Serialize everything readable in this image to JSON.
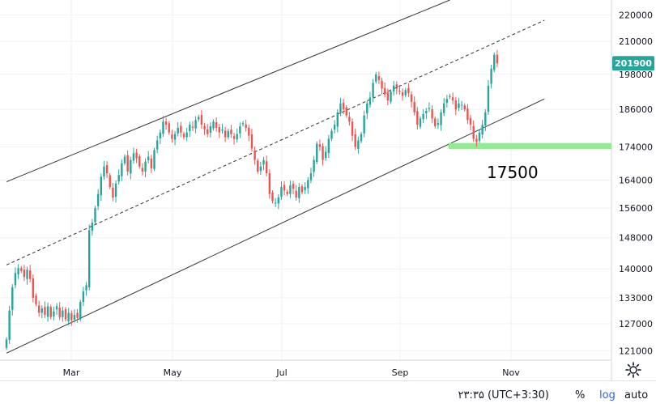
{
  "chart_data": {
    "type": "candlestick",
    "x_ticks": [
      "Mar",
      "May",
      "Jul",
      "Sep",
      "Nov"
    ],
    "y_ticks": [
      121000,
      127000,
      133000,
      140000,
      148000,
      156000,
      164000,
      174000,
      186000,
      198000,
      210000,
      220000
    ],
    "ylim": [
      119000,
      226000
    ],
    "last_price": 201900,
    "last_price_label": "201900",
    "annotation": "17500",
    "support_zone": [
      173300,
      175200
    ],
    "colors": {
      "up": "#26a69a",
      "down": "#ef5350",
      "price_tag": "#26a69a",
      "support": "#90ee90",
      "lines": "#333333"
    },
    "grid": true,
    "y_axis_position": "right",
    "closes": [
      123500,
      130000,
      135500,
      139000,
      140200,
      139500,
      138000,
      139800,
      137500,
      133000,
      131500,
      129500,
      130500,
      129000,
      131000,
      128500,
      129800,
      131000,
      128500,
      130000,
      128000,
      129500,
      127800,
      129000,
      128300,
      132000,
      134500,
      136000,
      150000,
      152000,
      156000,
      160000,
      165000,
      168000,
      166000,
      162000,
      159000,
      163000,
      165500,
      169000,
      171000,
      166500,
      170000,
      172000,
      170500,
      168000,
      166500,
      169500,
      171000,
      167500,
      173000,
      176000,
      178500,
      182000,
      181000,
      178500,
      176500,
      178000,
      180000,
      178500,
      177000,
      178500,
      181000,
      180000,
      182500,
      183500,
      181000,
      179500,
      178000,
      180500,
      182000,
      180000,
      178500,
      179500,
      177000,
      179000,
      178000,
      176500,
      178000,
      180500,
      181500,
      180000,
      177500,
      173500,
      170000,
      166500,
      168000,
      170000,
      166000,
      160000,
      158000,
      157500,
      159000,
      162000,
      161000,
      160000,
      162500,
      161500,
      159000,
      162000,
      160500,
      162000,
      164000,
      166000,
      170000,
      175000,
      174000,
      170000,
      172500,
      176500,
      179000,
      181000,
      185000,
      188000,
      186000,
      184000,
      182000,
      177500,
      174000,
      176000,
      178000,
      184000,
      188000,
      190000,
      195000,
      198000,
      196000,
      193000,
      191000,
      189000,
      192000,
      194000,
      193000,
      192000,
      190500,
      192500,
      191500,
      188500,
      185000,
      181000,
      183000,
      184500,
      185500,
      186500,
      183000,
      180500,
      181500,
      185000,
      188000,
      189500,
      190500,
      189000,
      186000,
      188000,
      187500,
      186000,
      182500,
      181000,
      176500,
      175500,
      178500,
      181000,
      185000,
      194000,
      200000,
      205000,
      201900
    ],
    "channel": {
      "upper": {
        "start": {
          "x": 0,
          "y": 163500
        },
        "end": {
          "x": 150,
          "y": 226000
        }
      },
      "middle": {
        "start": {
          "x": 0,
          "y": 141000
        },
        "end": {
          "x": 182,
          "y": 218000
        }
      },
      "lower": {
        "start": {
          "x": 0,
          "y": 120500
        },
        "end": {
          "x": 182,
          "y": 189500
        }
      }
    }
  },
  "axis": {
    "timezone_label": "۲۳:۳۵ (UTC+3:30)",
    "percent_label": "%",
    "log_label": "log",
    "auto_label": "auto"
  },
  "icons": {
    "settings": "gear-icon"
  }
}
